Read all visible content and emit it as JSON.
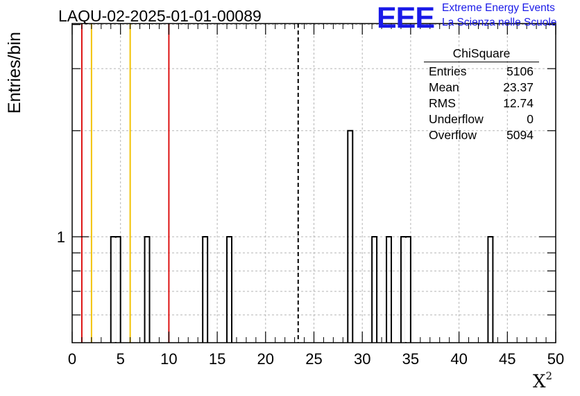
{
  "header": {
    "title": "LAQU-02-2025-01-01-00089",
    "logo_text": "EEE",
    "logo_line1": "Extreme Energy Events",
    "logo_line2": "La Scienza nelle Scuole"
  },
  "stats_box": {
    "title": "ChiSquare",
    "rows": [
      {
        "label": "Entries",
        "value": "5106"
      },
      {
        "label": "Mean",
        "value": "23.37"
      },
      {
        "label": "RMS",
        "value": "12.74"
      },
      {
        "label": "Underflow",
        "value": "0"
      },
      {
        "label": "Overflow",
        "value": "5094"
      }
    ]
  },
  "chart_data": {
    "type": "bar",
    "title": "LAQU-02-2025-01-01-00089",
    "xlabel": "X",
    "xlabel_superscript": "2",
    "ylabel": "Entries/bin",
    "x_scale": "linear",
    "y_scale": "log",
    "xlim": [
      0,
      50
    ],
    "x_ticks": [
      0,
      5,
      10,
      15,
      20,
      25,
      30,
      35,
      40,
      45,
      50
    ],
    "y_tick_labels": [
      "1"
    ],
    "bin_width": 0.5,
    "bins": [
      {
        "x": 4.0,
        "count": 1
      },
      {
        "x": 4.5,
        "count": 1
      },
      {
        "x": 7.5,
        "count": 1
      },
      {
        "x": 13.5,
        "count": 1
      },
      {
        "x": 16.0,
        "count": 1
      },
      {
        "x": 28.5,
        "count": 2
      },
      {
        "x": 31.0,
        "count": 1
      },
      {
        "x": 32.5,
        "count": 1
      },
      {
        "x": 34.0,
        "count": 1
      },
      {
        "x": 34.5,
        "count": 1
      },
      {
        "x": 43.0,
        "count": 1
      }
    ],
    "vertical_lines": [
      {
        "x": 1,
        "color": "#dd1111",
        "style": "solid"
      },
      {
        "x": 2,
        "color": "#f2c200",
        "style": "solid"
      },
      {
        "x": 6,
        "color": "#f2c200",
        "style": "solid"
      },
      {
        "x": 10,
        "color": "#dd1111",
        "style": "solid"
      },
      {
        "x": 23.37,
        "color": "#000000",
        "style": "dashed"
      }
    ],
    "grid": true
  }
}
